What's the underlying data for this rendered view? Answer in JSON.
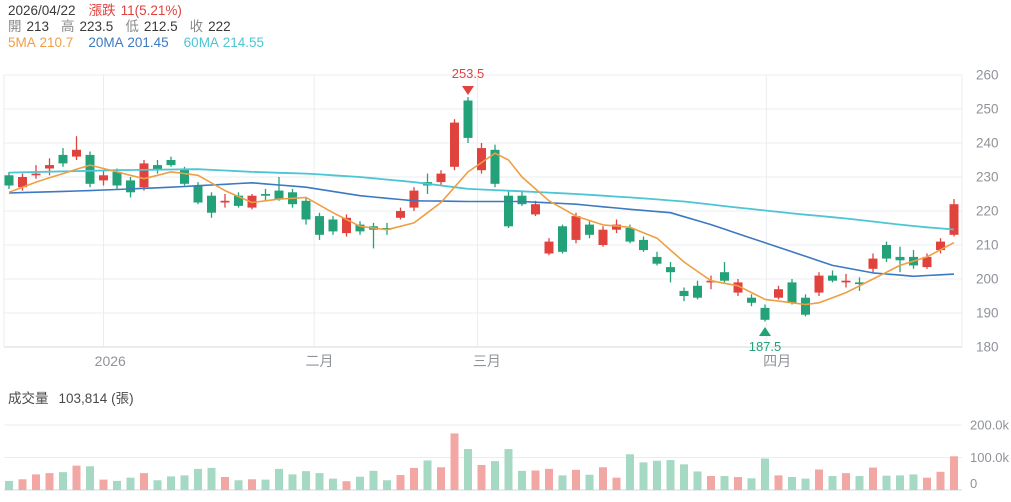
{
  "header": {
    "date": "2026/04/22",
    "change_label": "漲跌",
    "change_value": "11(5.21%)",
    "ohlc": {
      "open_label": "開",
      "open": "213",
      "high_label": "高",
      "high": "223.5",
      "low_label": "低",
      "low": "212.5",
      "close_label": "收",
      "close": "222"
    },
    "ma": {
      "ma5_label": "5MA",
      "ma5": "210.7",
      "ma20_label": "20MA",
      "ma20": "201.45",
      "ma60_label": "60MA",
      "ma60": "214.55"
    }
  },
  "volume_header": {
    "label": "成交量",
    "value": "103,814",
    "unit": "(張)"
  },
  "colors": {
    "up": "#e0423e",
    "down": "#23a178",
    "vol_up": "#f2a7a5",
    "vol_down": "#a6d9c4",
    "ma5": "#ef9f43",
    "ma20": "#3b79c2",
    "ma60": "#4cc5d4",
    "grid": "#e9edf1",
    "axis_line": "#d3d9de",
    "tick_text": "#8f9399"
  },
  "chart_data": {
    "type": "candlestick",
    "title": "",
    "y_axis": {
      "min": 180,
      "max": 260,
      "ticks": [
        260,
        250,
        240,
        230,
        220,
        210,
        200,
        190,
        180
      ]
    },
    "x_axis": {
      "labels": [
        {
          "label": "2026",
          "index": 7.5
        },
        {
          "label": "二月",
          "index": 23
        },
        {
          "label": "三月",
          "index": 35.4
        },
        {
          "label": "四月",
          "index": 56.9
        }
      ],
      "gridlines_at_index": [
        7.0,
        22.6,
        34.7,
        56.1
      ]
    },
    "annotations": {
      "high": {
        "label": "253.5",
        "index": 34,
        "price": 253.5
      },
      "low": {
        "label": "187.5",
        "index": 56,
        "price": 187.5
      }
    },
    "candles_ohlc": [
      [
        230.5,
        231.5,
        226.5,
        227.5
      ],
      [
        227,
        231,
        226,
        230
      ],
      [
        230.5,
        233.5,
        229.5,
        231
      ],
      [
        232.5,
        235.5,
        230.5,
        233.5
      ],
      [
        236.5,
        238.5,
        233,
        234
      ],
      [
        236,
        242,
        235,
        238
      ],
      [
        236.5,
        237.5,
        227,
        228
      ],
      [
        229,
        232,
        227.5,
        230.5
      ],
      [
        231.5,
        232.5,
        226.5,
        227.5
      ],
      [
        229,
        230,
        224,
        225.5
      ],
      [
        227,
        235,
        226,
        234
      ],
      [
        233.5,
        235,
        231,
        232
      ],
      [
        235,
        236,
        233,
        233.5
      ],
      [
        232.5,
        233,
        227.5,
        228
      ],
      [
        227.5,
        228.5,
        222,
        222.5
      ],
      [
        224.5,
        225.5,
        218,
        219.5
      ],
      [
        222.5,
        225,
        221,
        223
      ],
      [
        224.5,
        225.5,
        221,
        221.5
      ],
      [
        221,
        225,
        220.5,
        224.5
      ],
      [
        225,
        226.5,
        223,
        224.5
      ],
      [
        226,
        230,
        223,
        223.5
      ],
      [
        225.5,
        226.5,
        221,
        222
      ],
      [
        223,
        224,
        216,
        217.5
      ],
      [
        218.5,
        219.5,
        211.5,
        213
      ],
      [
        217.5,
        218.5,
        213,
        214
      ],
      [
        213.5,
        219,
        212.5,
        218
      ],
      [
        216,
        217,
        213,
        214
      ],
      [
        215.5,
        216.5,
        209,
        214.5
      ],
      [
        215,
        216.5,
        213,
        214.5
      ],
      [
        218,
        221,
        217.5,
        220
      ],
      [
        221,
        227,
        220,
        226
      ],
      [
        228.5,
        231,
        225,
        227.5
      ],
      [
        228.5,
        232,
        227.5,
        231
      ],
      [
        233,
        247,
        232,
        246
      ],
      [
        252.5,
        253.5,
        240,
        241.5
      ],
      [
        232,
        240,
        231,
        238.5
      ],
      [
        238,
        239.5,
        227,
        228
      ],
      [
        224.5,
        226,
        215,
        215.5
      ],
      [
        224.5,
        226,
        221.5,
        222
      ],
      [
        219,
        223,
        218.5,
        222
      ],
      [
        207.5,
        212,
        207,
        211
      ],
      [
        215.5,
        216,
        207.5,
        208
      ],
      [
        211.5,
        219.5,
        210.5,
        218.5
      ],
      [
        216,
        217,
        212,
        213
      ],
      [
        210,
        215.5,
        209.5,
        214.5
      ],
      [
        214.5,
        217.5,
        213.5,
        216
      ],
      [
        215,
        216,
        210.5,
        211
      ],
      [
        211.5,
        212.5,
        208,
        208.5
      ],
      [
        206.5,
        208,
        204,
        204.5
      ],
      [
        203.5,
        205,
        199,
        202
      ],
      [
        196.5,
        197.5,
        193.5,
        195
      ],
      [
        198,
        199.5,
        194,
        194.5
      ],
      [
        199,
        201,
        197,
        199.5
      ],
      [
        202,
        205,
        199,
        199.5
      ],
      [
        196,
        200,
        195,
        199
      ],
      [
        194.5,
        195.5,
        192,
        193
      ],
      [
        191.5,
        192.5,
        187.5,
        188
      ],
      [
        194.5,
        198,
        194,
        197
      ],
      [
        199,
        200,
        192.5,
        193
      ],
      [
        194.5,
        195.5,
        189,
        189.5
      ],
      [
        196,
        202,
        195,
        201
      ],
      [
        201,
        202.5,
        199,
        199.5
      ],
      [
        199,
        201.5,
        197.5,
        199.5
      ],
      [
        199,
        200.5,
        196.5,
        198.5
      ],
      [
        203,
        207.5,
        202,
        206
      ],
      [
        210,
        211,
        205,
        206
      ],
      [
        206.5,
        209.5,
        202,
        205.5
      ],
      [
        206.5,
        208.5,
        203,
        204
      ],
      [
        203.5,
        207.5,
        203,
        206.5
      ],
      [
        208.5,
        212,
        207.5,
        211
      ],
      [
        213,
        223.5,
        212.5,
        222
      ]
    ],
    "volumes_k": [
      28,
      33,
      48,
      52,
      55,
      75,
      73,
      32,
      28,
      38,
      52,
      30,
      42,
      45,
      65,
      68,
      40,
      30,
      33,
      32,
      65,
      48,
      58,
      52,
      35,
      27,
      41,
      59,
      30,
      46,
      68,
      91,
      70,
      174,
      126,
      77,
      89,
      126,
      59,
      60,
      65,
      45,
      62,
      47,
      70,
      38,
      110,
      85,
      90,
      92,
      79,
      57,
      43,
      43,
      40,
      36,
      97,
      45,
      40,
      35,
      63,
      43,
      52,
      43,
      69,
      44,
      45,
      48,
      38,
      56,
      103.8
    ],
    "volume_axis": {
      "ticks": [
        {
          "label": "200.0k",
          "value": 200
        },
        {
          "label": "100.0k",
          "value": 100
        },
        {
          "label": "0",
          "value": 0
        }
      ]
    },
    "ma5_points": [
      [
        0,
        225.5
      ],
      [
        2,
        228.5
      ],
      [
        4,
        231
      ],
      [
        6,
        233.5
      ],
      [
        8,
        231.5
      ],
      [
        10,
        229.5
      ],
      [
        12,
        231.5
      ],
      [
        14,
        230.5
      ],
      [
        16,
        226
      ],
      [
        18,
        222.5
      ],
      [
        20,
        223.5
      ],
      [
        22,
        224
      ],
      [
        24,
        219.5
      ],
      [
        26,
        215.5
      ],
      [
        28,
        214.5
      ],
      [
        30,
        216.5
      ],
      [
        32,
        222.5
      ],
      [
        34,
        231.5
      ],
      [
        36,
        237
      ],
      [
        37,
        235
      ],
      [
        38,
        230
      ],
      [
        40,
        223
      ],
      [
        42,
        218.5
      ],
      [
        44,
        215.9
      ],
      [
        46,
        215.2
      ],
      [
        48,
        212
      ],
      [
        50,
        205
      ],
      [
        52,
        199.5
      ],
      [
        54,
        198
      ],
      [
        56,
        194
      ],
      [
        58,
        193
      ],
      [
        59,
        192.5
      ],
      [
        60,
        193
      ],
      [
        62,
        196
      ],
      [
        64,
        200
      ],
      [
        66,
        204
      ],
      [
        68,
        206.5
      ],
      [
        70,
        210.7
      ]
    ],
    "ma20_points": [
      [
        0,
        225.3
      ],
      [
        6,
        226
      ],
      [
        12,
        227
      ],
      [
        18,
        228.3
      ],
      [
        22,
        227
      ],
      [
        26,
        224.5
      ],
      [
        30,
        223
      ],
      [
        34,
        222.8
      ],
      [
        38,
        222.8
      ],
      [
        42,
        222
      ],
      [
        46,
        220.5
      ],
      [
        49,
        219.5
      ],
      [
        52,
        216
      ],
      [
        55,
        212
      ],
      [
        58,
        208
      ],
      [
        61,
        204
      ],
      [
        64,
        201.8
      ],
      [
        67,
        200.8
      ],
      [
        70,
        201.45
      ]
    ],
    "ma60_points": [
      [
        0,
        231.3
      ],
      [
        8,
        232
      ],
      [
        14,
        232.3
      ],
      [
        18,
        231.5
      ],
      [
        22,
        231
      ],
      [
        26,
        230
      ],
      [
        30,
        228.5
      ],
      [
        34,
        226.5
      ],
      [
        38,
        225.8
      ],
      [
        42,
        225
      ],
      [
        46,
        224
      ],
      [
        50,
        222.8
      ],
      [
        54,
        221
      ],
      [
        58,
        219.3
      ],
      [
        62,
        217.8
      ],
      [
        66,
        216
      ],
      [
        68,
        215.2
      ],
      [
        70,
        214.55
      ]
    ]
  }
}
